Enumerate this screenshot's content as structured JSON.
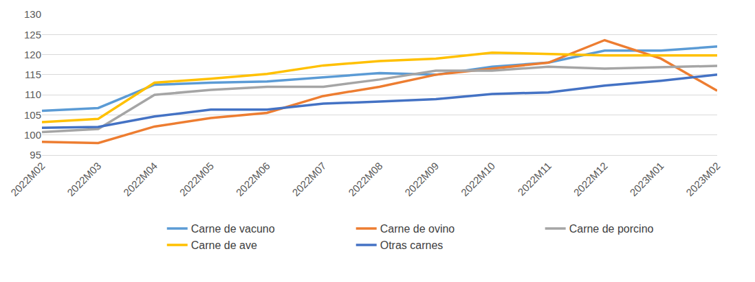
{
  "chart_data": {
    "type": "line",
    "categories": [
      "2022M02",
      "2022M03",
      "2022M04",
      "2022M05",
      "2022M06",
      "2022M07",
      "2022M08",
      "2022M09",
      "2022M10",
      "2022M11",
      "2022M12",
      "2023M01",
      "2023M02"
    ],
    "series": [
      {
        "name": "Carne de vacuno",
        "color": "#5B9BD5",
        "values": [
          106,
          106.7,
          112.5,
          113,
          113.3,
          114.4,
          115.4,
          115,
          117,
          118,
          121,
          121,
          122
        ]
      },
      {
        "name": "Carne de ovino",
        "color": "#ED7D31",
        "values": [
          98.3,
          98,
          102.1,
          104.2,
          105.5,
          109.7,
          112,
          115,
          116.5,
          118,
          123.6,
          119,
          111
        ]
      },
      {
        "name": "Carne de porcino",
        "color": "#A5A5A5",
        "values": [
          100.7,
          101.5,
          110,
          111.2,
          112,
          112,
          113.8,
          116,
          116,
          117,
          116.5,
          116.8,
          117.2
        ]
      },
      {
        "name": "Carne de ave",
        "color": "#FFC000",
        "values": [
          103.2,
          104,
          113,
          114,
          115.2,
          117.3,
          118.4,
          119,
          120.5,
          120.2,
          119.8,
          119.8,
          119.8
        ]
      },
      {
        "name": "Otras carnes",
        "color": "#4472C4",
        "values": [
          101.8,
          102,
          104.6,
          106.3,
          106.3,
          107.8,
          108.3,
          108.9,
          110.2,
          110.6,
          112.3,
          113.5,
          115
        ]
      }
    ],
    "ylim": [
      95,
      130
    ],
    "yticks": [
      95,
      100,
      105,
      110,
      115,
      120,
      125,
      130
    ],
    "grid": true,
    "legend": "bottom"
  }
}
